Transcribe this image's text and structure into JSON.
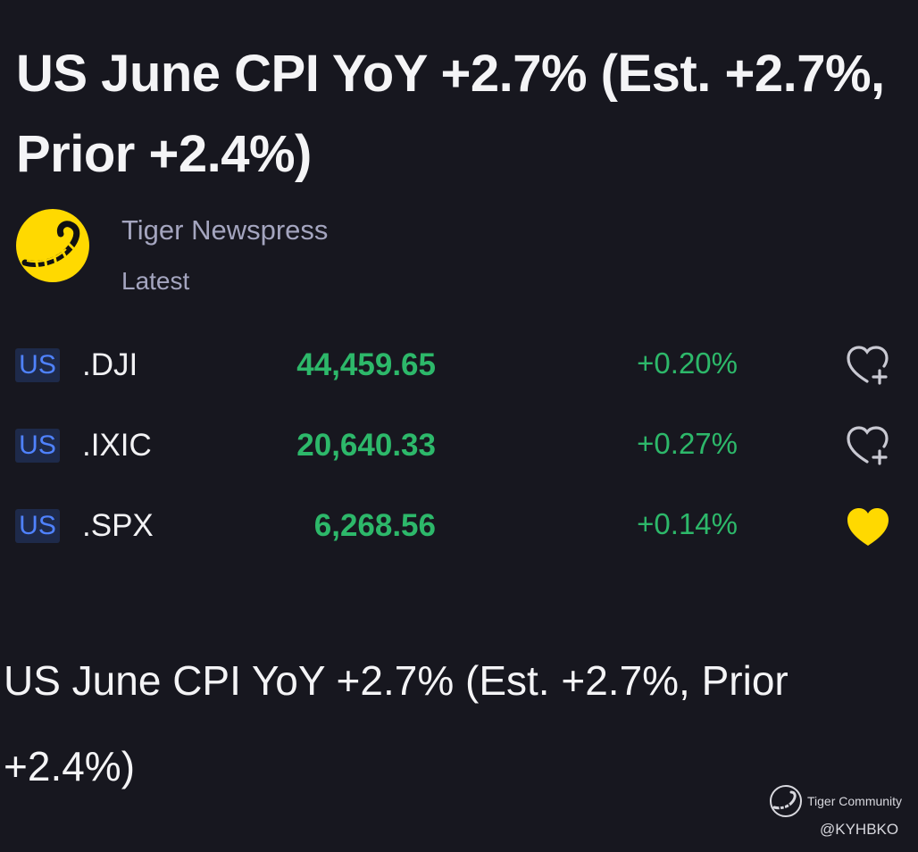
{
  "article": {
    "headline": "US June CPI YoY +2.7% (Est. +2.7%, Prior +2.4%)",
    "body": "US June CPI YoY +2.7% (Est. +2.7%, Prior +2.4%)"
  },
  "author": {
    "name": "Tiger Newspress",
    "tag": "Latest",
    "avatar_icon": "tiger-tail-logo-icon",
    "avatar_color": "#ffd900"
  },
  "quotes": [
    {
      "market": "US",
      "symbol": ".DJI",
      "price": "44,459.65",
      "change": "+0.20%",
      "watchlisted": false,
      "watch_icon": "heart-plus-outline-icon"
    },
    {
      "market": "US",
      "symbol": ".IXIC",
      "price": "20,640.33",
      "change": "+0.27%",
      "watchlisted": false,
      "watch_icon": "heart-plus-outline-icon"
    },
    {
      "market": "US",
      "symbol": ".SPX",
      "price": "6,268.56",
      "change": "+0.14%",
      "watchlisted": true,
      "watch_icon": "heart-filled-icon"
    }
  ],
  "watermark": {
    "brand": "Tiger Community",
    "handle": "@KYHBKO"
  },
  "colors": {
    "background": "#17171f",
    "positive": "#2db86a",
    "badge_text": "#4f82ff",
    "badge_bg": "#1e2a4a",
    "muted_text": "#a4a5bf",
    "watch_active": "#ffd900"
  }
}
